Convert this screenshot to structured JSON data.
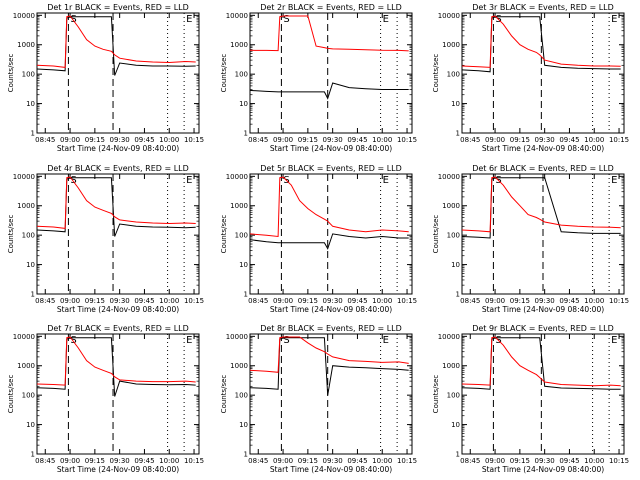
{
  "colors": {
    "events": "#000000",
    "lld": "#ff0000",
    "axis": "#000000"
  },
  "shared": {
    "xlabel": "Start Time (24-Nov-09 08:40:00)",
    "ylabel": "Counts/sec",
    "xticks": [
      "08:45",
      "09:00",
      "09:15",
      "09:30",
      "09:45",
      "10:00",
      "10:15"
    ],
    "yticks": [
      "1",
      "10",
      "100",
      "1000",
      "10000"
    ]
  },
  "chart_data": [
    {
      "type": "line",
      "title": "Det 1r BLACK = Events, RED = LLD",
      "x": [
        "08:40",
        "08:50",
        "08:57",
        "08:58",
        "09:00",
        "09:05",
        "09:10",
        "09:15",
        "09:20",
        "09:25",
        "09:27",
        "09:30",
        "09:40",
        "09:50",
        "10:00",
        "10:10",
        "10:16"
      ],
      "xlim": [
        "08:40",
        "10:18"
      ],
      "ylim": [
        1,
        12000
      ],
      "ylog": true,
      "markers": [
        {
          "x": "08:59",
          "label": "S",
          "style": "dash"
        },
        {
          "x": "09:26",
          "label": "",
          "style": "dash"
        },
        {
          "x": "09:59",
          "label": "",
          "style": "dot"
        },
        {
          "x": "10:09",
          "label": "E",
          "style": "dot"
        }
      ],
      "series": [
        {
          "name": "Events",
          "values": [
            150,
            140,
            130,
            8000,
            9000,
            9000,
            9000,
            9000,
            9000,
            9000,
            90,
            240,
            200,
            190,
            190,
            185,
            190
          ]
        },
        {
          "name": "LLD",
          "values": [
            200,
            190,
            170,
            9000,
            9500,
            4000,
            1500,
            900,
            700,
            600,
            450,
            350,
            280,
            260,
            250,
            270,
            260
          ]
        }
      ]
    },
    {
      "type": "line",
      "title": "Det 2r BLACK = Events, RED = LLD",
      "x": [
        "08:40",
        "08:50",
        "08:57",
        "08:58",
        "09:00",
        "09:05",
        "09:10",
        "09:15",
        "09:20",
        "09:25",
        "09:27",
        "09:30",
        "09:40",
        "09:50",
        "10:00",
        "10:10",
        "10:16"
      ],
      "xlim": [
        "08:40",
        "10:18"
      ],
      "ylim": [
        1,
        12000
      ],
      "ylog": true,
      "markers": [
        {
          "x": "08:59",
          "label": "S",
          "style": "dash"
        },
        {
          "x": "09:27",
          "label": "",
          "style": "dash"
        },
        {
          "x": "09:59",
          "label": "E",
          "style": "dot"
        },
        {
          "x": "10:09",
          "label": "",
          "style": "dot"
        }
      ],
      "series": [
        {
          "name": "Events",
          "values": [
            28,
            26,
            25,
            25,
            25,
            25,
            25,
            25,
            25,
            25,
            15,
            50,
            35,
            32,
            30,
            30,
            30
          ]
        },
        {
          "name": "LLD",
          "values": [
            650,
            640,
            630,
            9000,
            9500,
            9500,
            9500,
            9500,
            900,
            800,
            750,
            720,
            700,
            680,
            650,
            640,
            620
          ]
        }
      ]
    },
    {
      "type": "line",
      "title": "Det 3r BLACK = Events, RED = LLD",
      "x": [
        "08:40",
        "08:50",
        "08:57",
        "08:58",
        "09:00",
        "09:05",
        "09:10",
        "09:15",
        "09:20",
        "09:25",
        "09:27",
        "09:30",
        "09:40",
        "09:50",
        "10:00",
        "10:10",
        "10:16"
      ],
      "xlim": [
        "08:40",
        "10:18"
      ],
      "ylim": [
        1,
        12000
      ],
      "ylog": true,
      "markers": [
        {
          "x": "08:59",
          "label": "S",
          "style": "dash"
        },
        {
          "x": "09:28",
          "label": "",
          "style": "dash"
        },
        {
          "x": "09:59",
          "label": "",
          "style": "dot"
        },
        {
          "x": "10:09",
          "label": "E",
          "style": "dot"
        }
      ],
      "series": [
        {
          "name": "Events",
          "values": [
            140,
            130,
            120,
            8000,
            9000,
            9000,
            9000,
            9000,
            9000,
            9000,
            9000,
            200,
            170,
            160,
            155,
            150,
            150
          ]
        },
        {
          "name": "LLD",
          "values": [
            190,
            180,
            170,
            9000,
            9500,
            5000,
            2000,
            1000,
            700,
            550,
            450,
            300,
            220,
            200,
            190,
            190,
            185
          ]
        }
      ]
    },
    {
      "type": "line",
      "title": "Det 4r BLACK = Events, RED = LLD",
      "x": [
        "08:40",
        "08:50",
        "08:57",
        "08:58",
        "09:00",
        "09:05",
        "09:10",
        "09:15",
        "09:20",
        "09:25",
        "09:27",
        "09:30",
        "09:40",
        "09:50",
        "10:00",
        "10:10",
        "10:16"
      ],
      "xlim": [
        "08:40",
        "10:18"
      ],
      "ylim": [
        1,
        12000
      ],
      "ylog": true,
      "markers": [
        {
          "x": "08:59",
          "label": "S",
          "style": "dash"
        },
        {
          "x": "09:26",
          "label": "",
          "style": "dash"
        },
        {
          "x": "09:59",
          "label": "",
          "style": "dot"
        },
        {
          "x": "10:09",
          "label": "E",
          "style": "dot"
        }
      ],
      "series": [
        {
          "name": "Events",
          "values": [
            150,
            140,
            130,
            8000,
            9000,
            9000,
            9000,
            9000,
            9000,
            9000,
            90,
            240,
            200,
            190,
            185,
            180,
            185
          ]
        },
        {
          "name": "LLD",
          "values": [
            200,
            190,
            170,
            9000,
            9500,
            4000,
            1500,
            900,
            700,
            550,
            420,
            330,
            280,
            260,
            250,
            260,
            250
          ]
        }
      ]
    },
    {
      "type": "line",
      "title": "Det 5r BLACK = Events, RED = LLD",
      "x": [
        "08:40",
        "08:50",
        "08:57",
        "08:58",
        "09:00",
        "09:05",
        "09:10",
        "09:15",
        "09:20",
        "09:25",
        "09:27",
        "09:30",
        "09:40",
        "09:50",
        "10:00",
        "10:10",
        "10:16"
      ],
      "xlim": [
        "08:40",
        "10:18"
      ],
      "ylim": [
        1,
        12000
      ],
      "ylog": true,
      "markers": [
        {
          "x": "08:59",
          "label": "S",
          "style": "dash"
        },
        {
          "x": "09:27",
          "label": "",
          "style": "dash"
        },
        {
          "x": "09:59",
          "label": "E",
          "style": "dot"
        },
        {
          "x": "10:09",
          "label": "",
          "style": "dot"
        }
      ],
      "series": [
        {
          "name": "Events",
          "values": [
            70,
            60,
            55,
            55,
            55,
            55,
            55,
            55,
            55,
            55,
            35,
            110,
            90,
            80,
            90,
            80,
            80
          ]
        },
        {
          "name": "LLD",
          "values": [
            110,
            100,
            90,
            9000,
            9500,
            5000,
            1500,
            800,
            500,
            350,
            300,
            200,
            150,
            130,
            150,
            140,
            130
          ]
        }
      ]
    },
    {
      "type": "line",
      "title": "Det 6r BLACK = Events, RED = LLD",
      "x": [
        "08:40",
        "08:50",
        "08:57",
        "08:58",
        "09:00",
        "09:05",
        "09:10",
        "09:15",
        "09:20",
        "09:25",
        "09:27",
        "09:30",
        "09:40",
        "09:50",
        "10:00",
        "10:10",
        "10:16"
      ],
      "xlim": [
        "08:40",
        "10:18"
      ],
      "ylim": [
        1,
        12000
      ],
      "ylog": true,
      "markers": [
        {
          "x": "08:59",
          "label": "S",
          "style": "dash"
        },
        {
          "x": "09:29",
          "label": "",
          "style": "dash"
        },
        {
          "x": "09:59",
          "label": "",
          "style": "dot"
        },
        {
          "x": "10:09",
          "label": "E",
          "style": "dot"
        }
      ],
      "series": [
        {
          "name": "Events",
          "values": [
            90,
            85,
            80,
            8000,
            9000,
            9000,
            9000,
            9000,
            9000,
            9000,
            9000,
            9000,
            130,
            120,
            115,
            115,
            115
          ]
        },
        {
          "name": "LLD",
          "values": [
            150,
            140,
            130,
            9000,
            9500,
            5000,
            2000,
            1000,
            500,
            400,
            350,
            280,
            220,
            200,
            190,
            185,
            180
          ]
        }
      ]
    },
    {
      "type": "line",
      "title": "Det 7r BLACK = Events, RED = LLD",
      "x": [
        "08:40",
        "08:50",
        "08:57",
        "08:58",
        "09:00",
        "09:05",
        "09:10",
        "09:15",
        "09:20",
        "09:25",
        "09:27",
        "09:30",
        "09:40",
        "09:50",
        "10:00",
        "10:10",
        "10:16"
      ],
      "xlim": [
        "08:40",
        "10:18"
      ],
      "ylim": [
        1,
        12000
      ],
      "ylog": true,
      "markers": [
        {
          "x": "08:59",
          "label": "S",
          "style": "dash"
        },
        {
          "x": "09:26",
          "label": "",
          "style": "dash"
        },
        {
          "x": "09:59",
          "label": "",
          "style": "dot"
        },
        {
          "x": "10:09",
          "label": "E",
          "style": "dot"
        }
      ],
      "series": [
        {
          "name": "Events",
          "values": [
            180,
            170,
            160,
            8000,
            9000,
            9000,
            9000,
            9000,
            9000,
            9000,
            90,
            300,
            240,
            230,
            225,
            230,
            220
          ]
        },
        {
          "name": "LLD",
          "values": [
            240,
            230,
            220,
            9000,
            9500,
            4000,
            1500,
            900,
            700,
            550,
            420,
            330,
            300,
            290,
            290,
            300,
            280
          ]
        }
      ]
    },
    {
      "type": "line",
      "title": "Det 8r BLACK = Events, RED = LLD",
      "x": [
        "08:40",
        "08:50",
        "08:57",
        "08:58",
        "09:00",
        "09:05",
        "09:10",
        "09:15",
        "09:20",
        "09:25",
        "09:27",
        "09:30",
        "09:40",
        "09:50",
        "10:00",
        "10:10",
        "10:16"
      ],
      "xlim": [
        "08:40",
        "10:18"
      ],
      "ylim": [
        1,
        12000
      ],
      "ylog": true,
      "markers": [
        {
          "x": "08:59",
          "label": "S",
          "style": "dash"
        },
        {
          "x": "09:27",
          "label": "",
          "style": "dash"
        },
        {
          "x": "09:59",
          "label": "E",
          "style": "dot"
        },
        {
          "x": "10:09",
          "label": "",
          "style": "dot"
        }
      ],
      "series": [
        {
          "name": "Events",
          "values": [
            180,
            170,
            160,
            8000,
            9000,
            9000,
            9000,
            9000,
            9000,
            9000,
            100,
            1000,
            900,
            850,
            800,
            750,
            700
          ]
        },
        {
          "name": "LLD",
          "values": [
            700,
            650,
            600,
            9000,
            9500,
            9500,
            9500,
            6000,
            4000,
            3000,
            2500,
            2000,
            1500,
            1400,
            1300,
            1350,
            1200
          ]
        }
      ]
    },
    {
      "type": "line",
      "title": "Det 9r BLACK = Events, RED = LLD",
      "x": [
        "08:40",
        "08:50",
        "08:57",
        "08:58",
        "09:00",
        "09:05",
        "09:10",
        "09:15",
        "09:20",
        "09:25",
        "09:27",
        "09:30",
        "09:40",
        "09:50",
        "10:00",
        "10:10",
        "10:16"
      ],
      "xlim": [
        "08:40",
        "10:18"
      ],
      "ylim": [
        1,
        12000
      ],
      "ylog": true,
      "markers": [
        {
          "x": "08:59",
          "label": "S",
          "style": "dash"
        },
        {
          "x": "09:28",
          "label": "",
          "style": "dash"
        },
        {
          "x": "09:59",
          "label": "",
          "style": "dot"
        },
        {
          "x": "10:09",
          "label": "E",
          "style": "dot"
        }
      ],
      "series": [
        {
          "name": "Events",
          "values": [
            180,
            170,
            160,
            8000,
            9000,
            9000,
            9000,
            9000,
            9000,
            9000,
            9000,
            200,
            175,
            170,
            165,
            160,
            160
          ]
        },
        {
          "name": "LLD",
          "values": [
            240,
            230,
            220,
            9000,
            9500,
            5000,
            2000,
            1000,
            700,
            500,
            400,
            280,
            230,
            220,
            210,
            220,
            210
          ]
        }
      ]
    }
  ]
}
